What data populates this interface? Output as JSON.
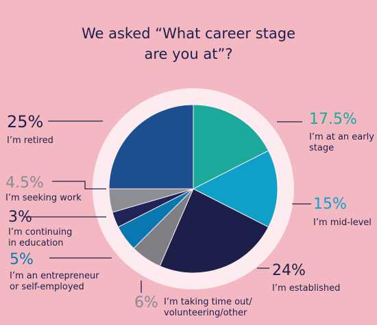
{
  "title_line1": "We asked “What career stage",
  "title_line2": "are you at”?",
  "chart_data": {
    "type": "pie",
    "title": "We asked “What career stage are you at”?",
    "slices": [
      {
        "value": 17.5,
        "label": "17.5%",
        "text": "I’m at an early stage",
        "color": "#1aa99a"
      },
      {
        "value": 15,
        "label": "15%",
        "text": "I’m mid-level",
        "color": "#0ea0c8"
      },
      {
        "value": 24,
        "label": "24%",
        "text": "I’m established",
        "color": "#1b1f4a"
      },
      {
        "value": 6,
        "label": "6%",
        "text": "I’m taking time out/ volunteering/other",
        "color": "#7d7f85"
      },
      {
        "value": 5,
        "label": "5%",
        "text": "I’m an entrepreneur or self-employed",
        "color": "#0a78b0"
      },
      {
        "value": 3,
        "label": "3%",
        "text": "I’m continuing in education",
        "color": "#1f2358"
      },
      {
        "value": 4.5,
        "label": "4.5%",
        "text": "I’m seeking work",
        "color": "#8c8e94"
      },
      {
        "value": 25,
        "label": "25%",
        "text": "I’m retired",
        "color": "#1c4f8f"
      }
    ]
  },
  "labels": {
    "early": {
      "pct": "17.5%",
      "line1": "I’m at an early",
      "line2": "stage"
    },
    "mid": {
      "pct": "15%",
      "line1": "I’m mid-level"
    },
    "established": {
      "pct": "24%",
      "line1": "I’m established"
    },
    "timeout": {
      "pct": "6%",
      "line1": "I’m taking time out/",
      "line2": "volunteering/other"
    },
    "entrepreneur": {
      "pct": "5%",
      "line1": "I’m an entrepreneur",
      "line2": "or self-employed"
    },
    "education": {
      "pct": "3%",
      "line1": "I’m continuing",
      "line2": "in education"
    },
    "seeking": {
      "pct": "4.5%",
      "line1": "I’m seeking work"
    },
    "retired": {
      "pct": "25%",
      "line1": "I’m retired"
    }
  },
  "colors": {
    "background": "#f4b8c2",
    "ring": "#fdecef",
    "text_dark": "#1b1f4a",
    "text_teal": "#1aa99a",
    "text_cyan": "#0ea0c8",
    "text_blue": "#0a78b0",
    "text_grey": "#8a8a92"
  }
}
